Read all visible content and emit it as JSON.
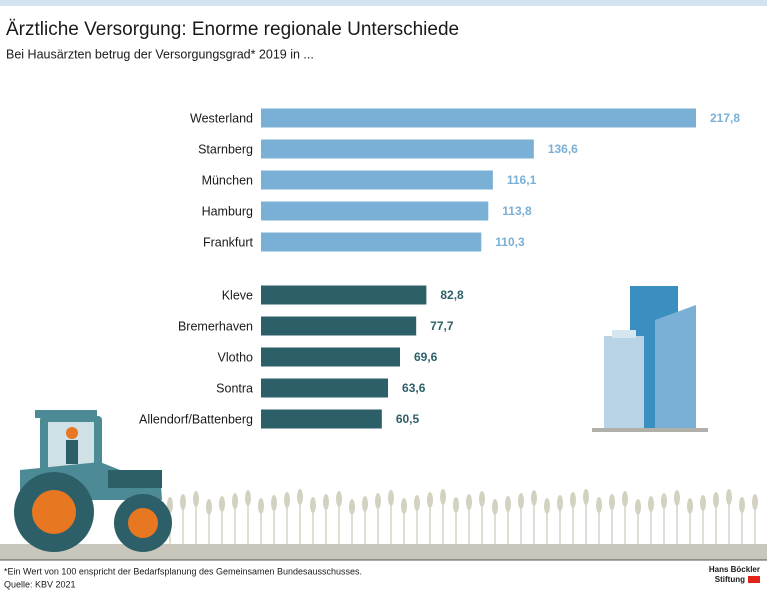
{
  "chart_data": {
    "type": "bar",
    "orientation": "horizontal",
    "title": "Ärztliche Versorgung: Enorme regionale Unterschiede",
    "subtitle": "Bei Hausärzten betrug der Versorgungsgrad* 2019 in ...",
    "categories": [
      "Westerland",
      "Starnberg",
      "München",
      "Hamburg",
      "Frankfurt",
      "Kleve",
      "Bremerhaven",
      "Vlotho",
      "Sontra",
      "Allendorf/Battenberg"
    ],
    "values": [
      217.8,
      136.6,
      116.1,
      113.8,
      110.3,
      82.8,
      77.7,
      69.6,
      63.6,
      60.5
    ],
    "value_labels": [
      "217,8",
      "136,6",
      "116,1",
      "113,8",
      "110,3",
      "82,8",
      "77,7",
      "69,6",
      "63,6",
      "60,5"
    ],
    "colors": [
      "#7ab0d5",
      "#7ab0d5",
      "#7ab0d5",
      "#7ab0d5",
      "#7ab0d5",
      "#2d5f69",
      "#2d5f69",
      "#2d5f69",
      "#2d5f69",
      "#2d5f69"
    ],
    "footnote": "*Ein Wert von 100 enspricht der Bedarfsplanung des Gemeinsamen Bundesausschusses.",
    "source": "Quelle: KBV 2021",
    "logo": [
      "Hans Böckler",
      "Stiftung"
    ]
  }
}
